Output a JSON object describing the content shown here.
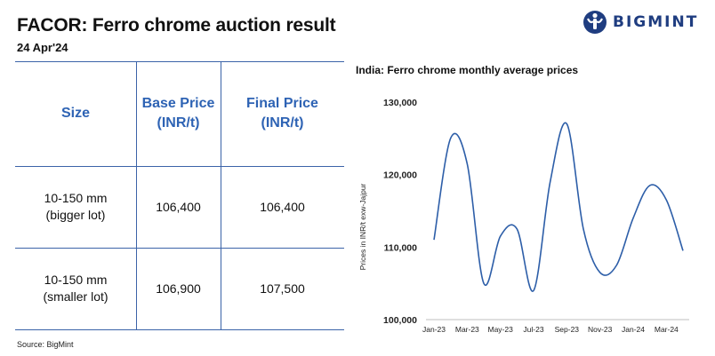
{
  "header": {
    "title": "FACOR: Ferro chrome auction result",
    "date": "24 Apr'24",
    "brand": "BIGMINT"
  },
  "table": {
    "columns": [
      "Size",
      "Base Price\n(INR/t)",
      "Final Price\n(INR/t)"
    ],
    "rows": [
      {
        "size": "10-150 mm\n(bigger lot)",
        "base": "106,400",
        "final": "106,400"
      },
      {
        "size": "10-150 mm\n(smaller lot)",
        "base": "106,900",
        "final": "107,500"
      }
    ]
  },
  "source": "Source: BigMint",
  "chart_data": {
    "type": "line",
    "title": "India: Ferro chrome monthly average prices",
    "ylabel": "Prices in INR/t exw-Jajpur",
    "xlabel": "",
    "ylim": [
      100000,
      130000
    ],
    "yticks": [
      "100,000",
      "110,000",
      "120,000",
      "130,000"
    ],
    "xticks": [
      "Jan-23",
      "Mar-23",
      "May-23",
      "Jul-23",
      "Sep-23",
      "Nov-23",
      "Jan-24",
      "Mar-24"
    ],
    "x": [
      "Jan-23",
      "Feb-23",
      "Mar-23",
      "Apr-23",
      "May-23",
      "Jun-23",
      "Jul-23",
      "Aug-23",
      "Sep-23",
      "Oct-23",
      "Nov-23",
      "Dec-23",
      "Jan-24",
      "Feb-24",
      "Mar-24",
      "Apr-24"
    ],
    "series": [
      {
        "values": [
          111000,
          125000,
          121500,
          105000,
          111500,
          112500,
          104000,
          119000,
          127000,
          112500,
          106500,
          107500,
          114000,
          118500,
          116500,
          109500
        ]
      }
    ],
    "grid": false,
    "line_color": "#2d5ea8"
  }
}
